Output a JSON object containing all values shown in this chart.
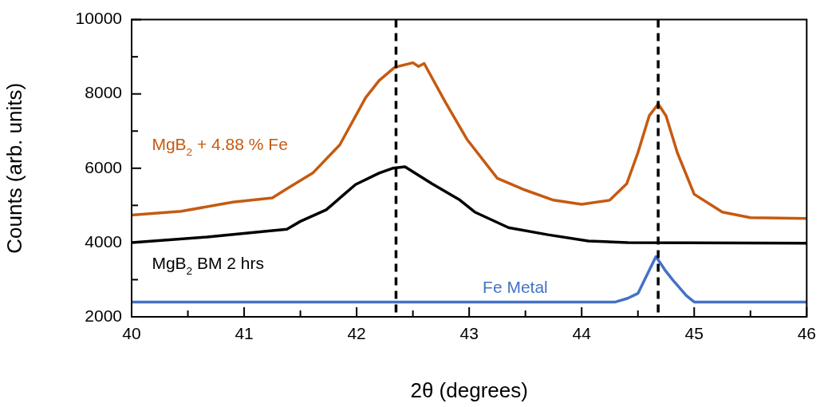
{
  "chart_data": {
    "type": "line",
    "xlabel": "2θ (degrees)",
    "ylabel": "Counts (arb. units)",
    "xlim": [
      40,
      46
    ],
    "xticks": [
      40,
      {
        "value": 40.5,
        "label": null
      },
      41,
      {
        "value": 41.5,
        "label": null
      },
      42,
      {
        "value": 42.5,
        "label": null
      },
      43,
      {
        "value": 43.5,
        "label": null
      },
      44,
      {
        "value": 44.5,
        "label": null
      },
      45,
      {
        "value": 45.5,
        "label": null
      },
      46
    ],
    "ylim": [
      2000,
      10000
    ],
    "yticks": [
      2000,
      {
        "value": 3000,
        "label": null
      },
      4000,
      {
        "value": 5000,
        "label": null
      },
      6000,
      {
        "value": 7000,
        "label": null
      },
      8000,
      {
        "value": 9000,
        "label": null
      },
      10000
    ],
    "grid": false,
    "legend": false,
    "marker": "none",
    "line_style": "solid",
    "series": [
      {
        "name": "MgB$_{2}$ + 4.88 % Fe",
        "color": "#c55a11",
        "x": [
          40,
          40.44,
          40.9,
          41.25,
          41.38,
          41.61,
          41.85,
          42.08,
          42.2,
          42.34,
          42.5,
          42.55,
          42.6,
          42.79,
          42.98,
          43.25,
          43.5,
          43.75,
          44,
          44.25,
          44.4,
          44.5,
          44.6,
          44.68,
          44.75,
          44.85,
          45,
          45.25,
          45.5,
          46
        ],
        "values": [
          4740,
          4840,
          5090,
          5200,
          5450,
          5870,
          6630,
          7900,
          8360,
          8720,
          8840,
          8740,
          8820,
          7770,
          6780,
          5730,
          5410,
          5140,
          5030,
          5140,
          5580,
          6420,
          7410,
          7730,
          7410,
          6420,
          5300,
          4820,
          4670,
          4650
        ]
      },
      {
        "name": "MgB$_{2}$ BM 2 hrs",
        "color": "#000000",
        "x": [
          40,
          40.67,
          41.14,
          41.38,
          41.5,
          41.73,
          41.89,
          41.99,
          42.2,
          42.32,
          42.43,
          42.67,
          42.91,
          43.05,
          43.35,
          43.7,
          44.06,
          44.41,
          46
        ],
        "values": [
          4000,
          4150,
          4290,
          4360,
          4570,
          4880,
          5300,
          5560,
          5870,
          6000,
          6040,
          5580,
          5160,
          4820,
          4400,
          4210,
          4040,
          4000,
          3980
        ]
      },
      {
        "name": "Fe Metal",
        "color": "#4472c4",
        "x": [
          40,
          44.3,
          44.41,
          44.5,
          44.66,
          44.74,
          44.81,
          44.93,
          45,
          46
        ],
        "values": [
          2400,
          2400,
          2500,
          2630,
          3620,
          3260,
          2990,
          2570,
          2400,
          2400
        ]
      }
    ],
    "ref_lines": [
      {
        "axis": "x",
        "value": 42.35,
        "color": "#000000",
        "line_style": "dashed"
      },
      {
        "axis": "x",
        "value": 44.68,
        "color": "#000000",
        "line_style": "dashed"
      }
    ]
  }
}
